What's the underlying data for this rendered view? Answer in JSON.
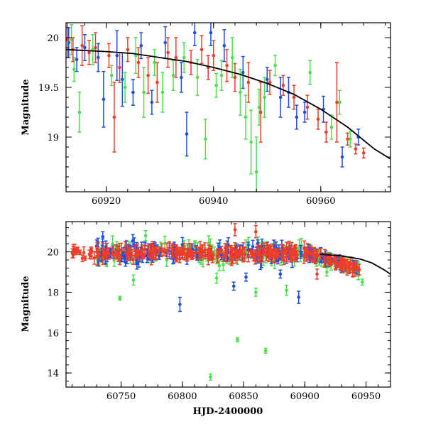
{
  "colors": {
    "blue": "#1f4fe0",
    "green": "#4ce04c",
    "red": "#f03c28",
    "black": "#000000"
  },
  "chart_data": [
    {
      "type": "scatter",
      "panel": "top",
      "title": "",
      "xlabel": "",
      "ylabel": "Magnitude",
      "xlim": [
        60912.5,
        60973
      ],
      "ylim": [
        20.15,
        18.45
      ],
      "y_inverted": true,
      "xticks": [
        60920,
        60940,
        60960
      ],
      "xtick_labels": [
        "60920",
        "60940",
        "60960"
      ],
      "yticks": [
        19,
        19.5,
        20
      ],
      "ytick_labels": [
        "19",
        "19.5",
        "20"
      ],
      "model_curve": {
        "color": "black",
        "x": [
          60912.5,
          60920,
          60925,
          60930,
          60935,
          60940,
          60945,
          60950,
          60955,
          60960,
          60965,
          60970,
          60973
        ],
        "y": [
          19.88,
          19.86,
          19.84,
          19.8,
          19.76,
          19.7,
          19.63,
          19.54,
          19.43,
          19.28,
          19.1,
          18.88,
          18.78
        ]
      },
      "series": [
        {
          "name": "blue",
          "color": "blue",
          "points": [
            [
              60913,
              19.95,
              0.15
            ],
            [
              60914.5,
              19.78,
              0.12
            ],
            [
              60916,
              19.9,
              0.13
            ],
            [
              60918.5,
              19.8,
              0.14
            ],
            [
              60919.5,
              19.38,
              0.28
            ],
            [
              60922,
              19.82,
              0.25
            ],
            [
              60923,
              19.58,
              0.27
            ],
            [
              60925,
              19.45,
              0.13
            ],
            [
              60926.5,
              19.92,
              0.13
            ],
            [
              60928.5,
              19.35,
              0.12
            ],
            [
              60931,
              19.95,
              0.16
            ],
            [
              60934,
              19.6,
              0.15
            ],
            [
              60935,
              19.03,
              0.22
            ],
            [
              60936.5,
              20.05,
              0.13
            ],
            [
              60939.5,
              20.05,
              0.13
            ],
            [
              60942,
              19.92,
              0.16
            ],
            [
              60945.5,
              19.65,
              0.16
            ],
            [
              60950,
              19.58,
              0.12
            ],
            [
              60952.5,
              19.4,
              0.2
            ],
            [
              60954,
              19.45,
              0.15
            ],
            [
              60955.5,
              19.2,
              0.12
            ],
            [
              60957,
              19.25,
              0.1
            ],
            [
              60960.5,
              19.28,
              0.13
            ],
            [
              60964,
              18.8,
              0.1
            ],
            [
              60967,
              19.0,
              0.08
            ]
          ]
        },
        {
          "name": "green",
          "color": "green",
          "points": [
            [
              60913.5,
              19.98,
              0.15
            ],
            [
              60914,
              19.68,
              0.12
            ],
            [
              60915,
              19.25,
              0.2
            ],
            [
              60917.5,
              19.88,
              0.15
            ],
            [
              60921,
              19.62,
              0.1
            ],
            [
              60923.5,
              19.5,
              0.15
            ],
            [
              60925.5,
              19.82,
              0.18
            ],
            [
              60927,
              19.45,
              0.25
            ],
            [
              60929,
              19.75,
              0.13
            ],
            [
              60930.5,
              19.45,
              0.2
            ],
            [
              60932.5,
              19.62,
              0.15
            ],
            [
              60934.5,
              19.8,
              0.15
            ],
            [
              60937,
              19.6,
              0.18
            ],
            [
              60938.5,
              18.98,
              0.2
            ],
            [
              60940.5,
              19.52,
              0.12
            ],
            [
              60941.5,
              19.62,
              0.15
            ],
            [
              60943.5,
              19.8,
              0.2
            ],
            [
              60945,
              19.45,
              0.23
            ],
            [
              60946,
              19.2,
              0.22
            ],
            [
              60947,
              18.95,
              0.32
            ],
            [
              60948,
              18.65,
              0.35
            ],
            [
              60948.5,
              19.3,
              0.18
            ],
            [
              60949.5,
              19.4,
              0.2
            ],
            [
              60951.5,
              19.72,
              0.1
            ],
            [
              60958,
              19.65,
              0.12
            ],
            [
              60962,
              19.1,
              0.12
            ],
            [
              60963.5,
              19.35,
              0.12
            ],
            [
              60965.5,
              18.98,
              0.08
            ]
          ]
        },
        {
          "name": "red",
          "color": "red",
          "points": [
            [
              60912.8,
              19.98,
              0.18
            ],
            [
              60913.8,
              19.88,
              0.12
            ],
            [
              60915.5,
              19.92,
              0.2
            ],
            [
              60916.8,
              19.85,
              0.12
            ],
            [
              60918,
              19.9,
              0.15
            ],
            [
              60920.5,
              19.82,
              0.12
            ],
            [
              60921.5,
              19.2,
              0.35
            ],
            [
              60922.5,
              19.7,
              0.15
            ],
            [
              60924,
              19.88,
              0.12
            ],
            [
              60926,
              19.75,
              0.15
            ],
            [
              60927.8,
              19.62,
              0.18
            ],
            [
              60929.5,
              19.55,
              0.2
            ],
            [
              60931.5,
              19.85,
              0.15
            ],
            [
              60933,
              19.8,
              0.2
            ],
            [
              60935.8,
              19.75,
              0.12
            ],
            [
              60937.8,
              19.88,
              0.14
            ],
            [
              60939,
              19.7,
              0.12
            ],
            [
              60940,
              19.82,
              0.15
            ],
            [
              60942.5,
              19.72,
              0.16
            ],
            [
              60944,
              19.6,
              0.14
            ],
            [
              60946.5,
              19.55,
              0.2
            ],
            [
              60948.8,
              19.25,
              0.3
            ],
            [
              60950.5,
              19.55,
              0.12
            ],
            [
              60953,
              19.52,
              0.1
            ],
            [
              60955,
              19.4,
              0.12
            ],
            [
              60957.5,
              19.3,
              0.12
            ],
            [
              60959.5,
              19.18,
              0.1
            ],
            [
              60961,
              19.05,
              0.1
            ],
            [
              60963,
              19.35,
              0.4
            ],
            [
              60965,
              18.98,
              0.06
            ],
            [
              60966.5,
              18.88,
              0.05
            ],
            [
              60968,
              18.84,
              0.05
            ]
          ]
        }
      ]
    },
    {
      "type": "scatter",
      "panel": "bottom",
      "title": "",
      "xlabel": "HJD-2400000",
      "ylabel": "Magnitude",
      "xlim": [
        60705,
        60970
      ],
      "ylim": [
        21.5,
        13.3
      ],
      "y_inverted": true,
      "xticks": [
        60750,
        60800,
        60850,
        60900,
        60950
      ],
      "xtick_labels": [
        "60750",
        "60800",
        "60850",
        "60900",
        "60950"
      ],
      "yticks": [
        14,
        16,
        18,
        20
      ],
      "ytick_labels": [
        "14",
        "16",
        "18",
        "20"
      ],
      "baseline": {
        "mean_mag": 19.95,
        "scatter": 0.35,
        "x_start": 60710,
        "x_end": 60945
      },
      "model_curve": {
        "color": "black",
        "x": [
          60912.5,
          60930,
          60945,
          60955,
          60965,
          60970
        ],
        "y": [
          19.88,
          19.8,
          19.65,
          19.45,
          19.1,
          18.9
        ]
      },
      "outliers": [
        {
          "color": "green",
          "x": 60823,
          "y": 13.8,
          "err": 0.15
        },
        {
          "color": "green",
          "x": 60868,
          "y": 15.1,
          "err": 0.12
        },
        {
          "color": "green",
          "x": 60845,
          "y": 15.65,
          "err": 0.1
        },
        {
          "color": "blue",
          "x": 60798,
          "y": 17.4,
          "err": 0.35
        },
        {
          "color": "green",
          "x": 60749,
          "y": 17.7,
          "err": 0.1
        },
        {
          "color": "blue",
          "x": 60895,
          "y": 17.75,
          "err": 0.3
        },
        {
          "color": "blue",
          "x": 60842,
          "y": 18.3,
          "err": 0.2
        },
        {
          "color": "green",
          "x": 60860,
          "y": 18.0,
          "err": 0.2
        },
        {
          "color": "green",
          "x": 60885,
          "y": 18.1,
          "err": 0.25
        },
        {
          "color": "green",
          "x": 60760,
          "y": 18.6,
          "err": 0.25
        },
        {
          "color": "green",
          "x": 60828,
          "y": 18.7,
          "err": 0.25
        },
        {
          "color": "blue",
          "x": 60880,
          "y": 18.9,
          "err": 0.2
        },
        {
          "color": "green",
          "x": 60947,
          "y": 18.5,
          "err": 0.15
        },
        {
          "color": "green",
          "x": 60918,
          "y": 19.0,
          "err": 0.2
        },
        {
          "color": "blue",
          "x": 60852,
          "y": 18.75,
          "err": 0.2
        },
        {
          "color": "red",
          "x": 60910,
          "y": 18.9,
          "err": 0.25
        },
        {
          "color": "red",
          "x": 60860,
          "y": 21.0,
          "err": 0.3
        },
        {
          "color": "blue",
          "x": 60735,
          "y": 20.75,
          "err": 0.25
        },
        {
          "color": "green",
          "x": 60770,
          "y": 20.8,
          "err": 0.25
        },
        {
          "color": "red",
          "x": 60843,
          "y": 21.1,
          "err": 0.3
        }
      ],
      "series": [
        {
          "name": "blue",
          "color": "blue"
        },
        {
          "name": "green",
          "color": "green"
        },
        {
          "name": "red",
          "color": "red"
        }
      ]
    }
  ]
}
